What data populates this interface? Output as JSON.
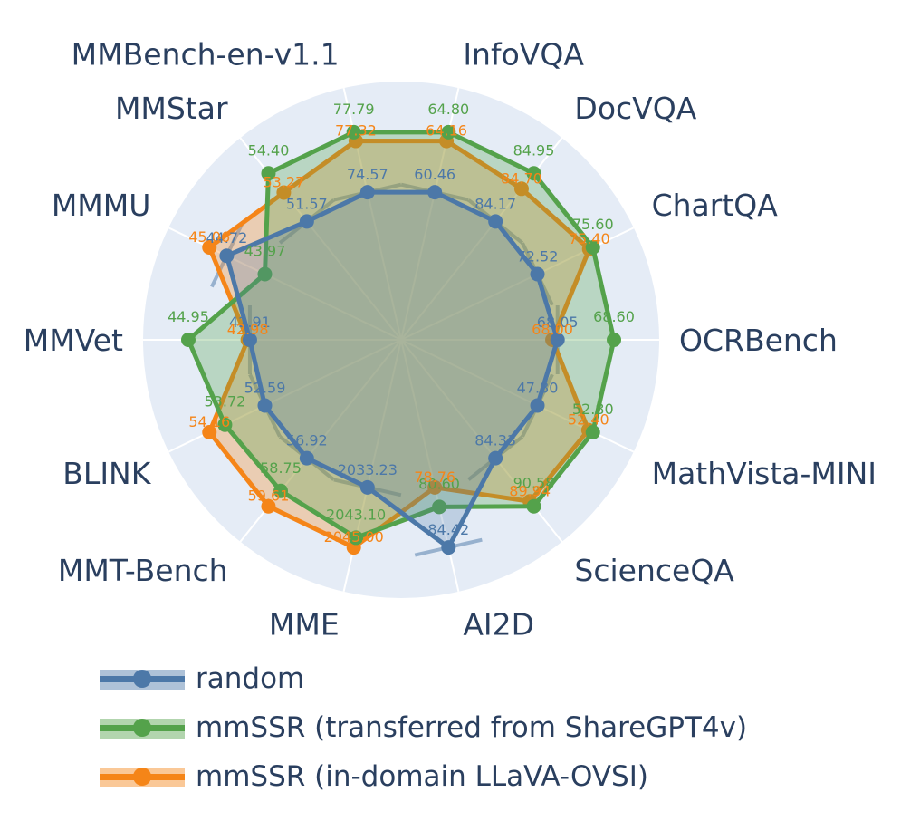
{
  "chart_data": {
    "type": "radar",
    "title": "",
    "axes": [
      "OCRBench",
      "ChartQA",
      "DocVQA",
      "InfoVQA",
      "MMBench-en-v1.1",
      "MMStar",
      "MMMU",
      "MMVet",
      "BLINK",
      "MMT-Bench",
      "MME",
      "AI2D",
      "ScienceQA",
      "MathVista-MINI"
    ],
    "series": [
      {
        "name": "random",
        "color": "#4c78a8",
        "values": [
          68.05,
          72.52,
          84.17,
          60.46,
          74.57,
          51.57,
          44.72,
          42.91,
          52.59,
          56.92,
          2033.23,
          84.42,
          84.33,
          47.8
        ],
        "labels": [
          "68.05",
          "72.52",
          "84.17",
          "60.46",
          "74.57",
          "51.57",
          "44.72",
          "42.91",
          "52.59",
          "56.92",
          "2033.23",
          "84.42",
          "84.33",
          "47.80"
        ]
      },
      {
        "name": "mmSSR (transferred from ShareGPT4v)",
        "color": "#54a24b",
        "values": [
          68.6,
          75.6,
          84.95,
          64.8,
          77.79,
          54.4,
          43.97,
          44.95,
          53.72,
          58.75,
          2043.1,
          80.6,
          90.58,
          52.8
        ],
        "labels": [
          "68.60",
          "75.60",
          "84.95",
          "64.80",
          "77.79",
          "54.40",
          "43.97",
          "44.95",
          "53.72",
          "58.75",
          "2043.10",
          "80.60",
          "90.58",
          "52.80"
        ]
      },
      {
        "name": "mmSSR (in-domain LLaVA-OVSI)",
        "color": "#f58518",
        "values": [
          68.0,
          75.4,
          84.7,
          64.16,
          77.32,
          53.27,
          45.06,
          42.98,
          54.16,
          59.61,
          2045.0,
          78.76,
          89.94,
          52.4
        ],
        "labels": [
          "68.00",
          "75.40",
          "84.70",
          "64.16",
          "77.32",
          "53.27",
          "45.06",
          "42.98",
          "54.16",
          "59.61",
          "2045.00",
          "78.76",
          "89.94",
          "52.40"
        ]
      }
    ],
    "legend_position": "bottom-left",
    "grid": true
  }
}
